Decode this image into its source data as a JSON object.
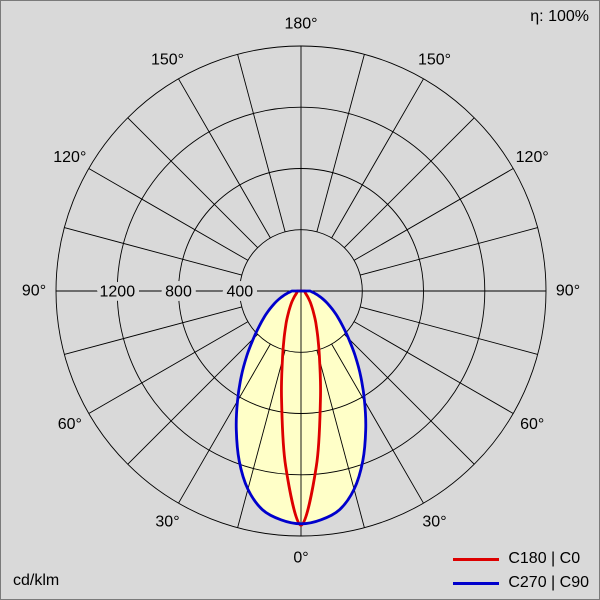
{
  "meta": {
    "efficiency_label": "η: 100%",
    "unit_label": "cd/klm",
    "background_color": "#d9d9d9"
  },
  "legend": [
    {
      "label": "C180 | C0",
      "color": "#dd0000"
    },
    {
      "label": "C270 | C90",
      "color": "#0000cc"
    }
  ],
  "chart_data": {
    "type": "polar",
    "subtype": "luminous-intensity-distribution",
    "unit": "cd/klm",
    "efficiency_percent": 100,
    "angle_tick_labels": [
      "0°",
      "30°",
      "60°",
      "90°",
      "120°",
      "150°",
      "180°"
    ],
    "radial_ticks": [
      400,
      800,
      1200
    ],
    "radial_max": 1600,
    "grid_spoke_step_deg": 15,
    "fill_color": "#ffffc8",
    "gamma_deg": [
      0,
      5,
      10,
      15,
      20,
      25,
      30,
      35,
      40,
      45,
      50,
      55,
      60,
      65,
      70,
      75,
      80,
      85,
      90
    ],
    "series": [
      {
        "name": "C180 | C0",
        "color": "#dd0000",
        "fill": false,
        "values": [
          1530,
          1150,
          730,
          470,
          320,
          228,
          165,
          122,
          92,
          70,
          55,
          44,
          37,
          32,
          29,
          27,
          26,
          25,
          25
        ]
      },
      {
        "name": "C270 | C90",
        "color": "#0000cc",
        "fill": true,
        "values": [
          1520,
          1500,
          1450,
          1340,
          1180,
          1000,
          830,
          680,
          550,
          440,
          355,
          290,
          235,
          190,
          152,
          120,
          93,
          72,
          60
        ]
      }
    ]
  }
}
